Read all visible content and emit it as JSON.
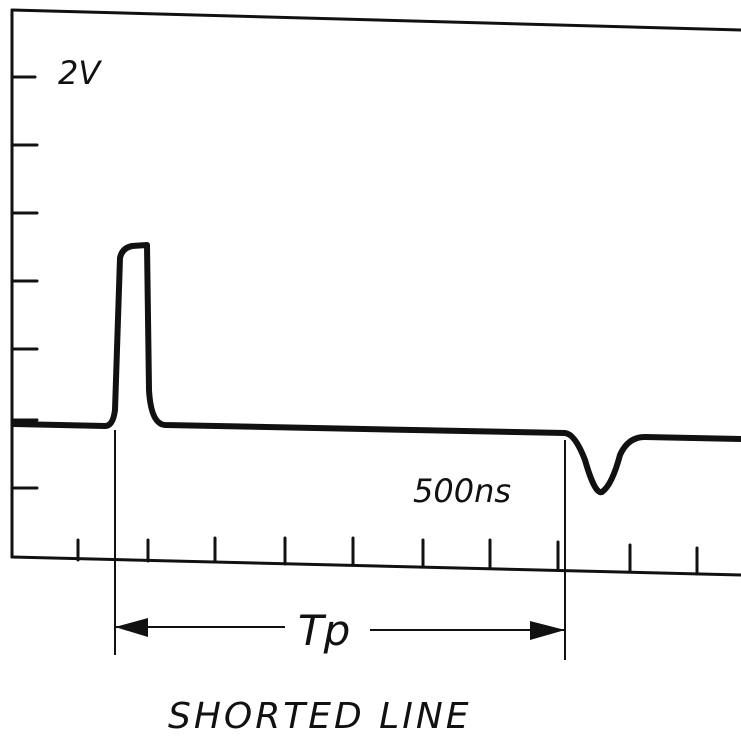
{
  "labels": {
    "voltage": "2V",
    "time": "500ns",
    "interval": "Tp",
    "caption": "SHORTED LINE"
  }
}
